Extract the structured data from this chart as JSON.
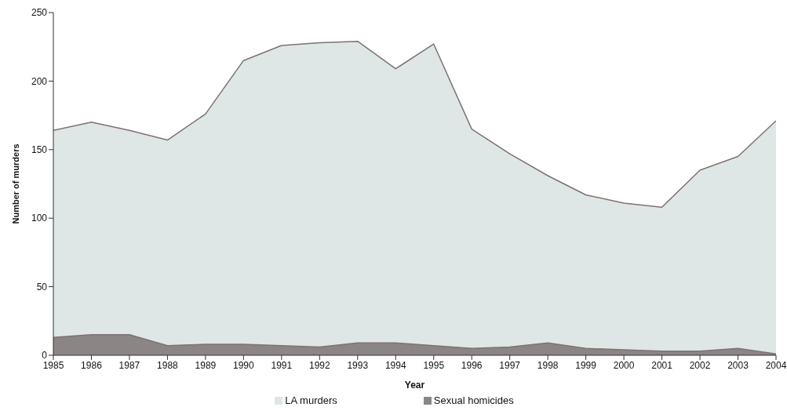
{
  "chart_data": {
    "type": "area",
    "xlabel": "Year",
    "ylabel": "Number of murders",
    "categories": [
      "1985",
      "1986",
      "1987",
      "1988",
      "1989",
      "1990",
      "1991",
      "1992",
      "1993",
      "1994",
      "1995",
      "1996",
      "1997",
      "1998",
      "1999",
      "2000",
      "2001",
      "2002",
      "2003",
      "2004"
    ],
    "series": [
      {
        "name": "LA murders",
        "color": "#dfe7e6",
        "values": [
          164,
          170,
          164,
          157,
          176,
          215,
          226,
          228,
          229,
          209,
          227,
          165,
          147,
          131,
          117,
          111,
          108,
          135,
          145,
          171
        ]
      },
      {
        "name": "Sexual homicides",
        "color": "#8c8585",
        "values": [
          13,
          15,
          15,
          7,
          8,
          8,
          7,
          6,
          9,
          9,
          7,
          5,
          6,
          9,
          5,
          4,
          3,
          3,
          5,
          1
        ]
      }
    ],
    "ylim": [
      0,
      250
    ],
    "yticks": [
      0,
      50,
      100,
      150,
      200,
      250
    ],
    "grid": false,
    "legend": "bottom"
  }
}
